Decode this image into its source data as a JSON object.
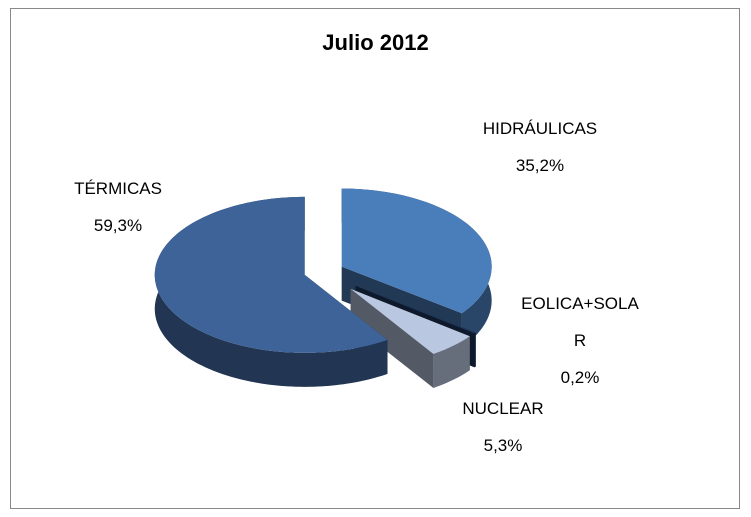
{
  "chart_data": {
    "type": "pie",
    "title": "Julio 2012",
    "categories": [
      "HIDRÁULICAS",
      "EOLICA+SOLAR",
      "NUCLEAR",
      "TÉRMICAS"
    ],
    "values": [
      35.2,
      0.2,
      5.3,
      59.3
    ],
    "value_labels": [
      "35,2%",
      "0,2%",
      "5,3%",
      "59,3%"
    ],
    "colors": [
      "#4a7ebb",
      "#1f3a5f",
      "#b9c7e0",
      "#3d6399"
    ]
  }
}
